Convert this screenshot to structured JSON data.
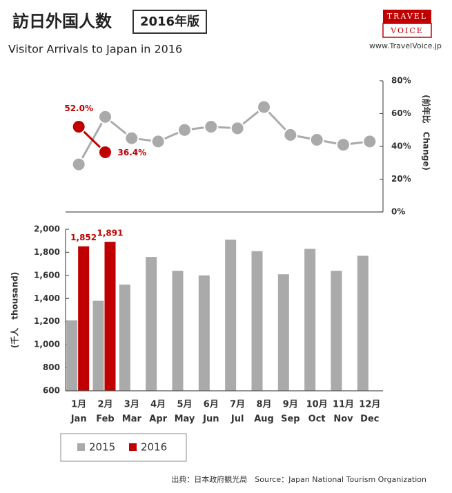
{
  "header": {
    "title": "訪日外国人数",
    "badge": "2016年版",
    "subtitle": "Visitor Arrivals to Japan in 2016",
    "logo_top": "TRAVEL",
    "logo_bottom": "VOICE",
    "url": "www.TravelVoice.jp"
  },
  "chart_data": [
    {
      "type": "line",
      "categories": [
        "1月",
        "2月",
        "3月",
        "4月",
        "5月",
        "6月",
        "7月",
        "8月",
        "9月",
        "10月",
        "11月",
        "12月"
      ],
      "y2label": "(前年比　Change)",
      "y2lim": [
        0,
        80
      ],
      "y2ticks": [
        {
          "value": 0,
          "label": "0%"
        },
        {
          "value": 20,
          "label": "20%"
        },
        {
          "value": 40,
          "label": "40%"
        },
        {
          "value": 60,
          "label": "60%"
        },
        {
          "value": 80,
          "label": "80%"
        }
      ],
      "series": [
        {
          "name": "2015",
          "color": "#aaaaaa",
          "axis": "y2",
          "values": [
            29,
            58,
            45,
            43,
            50,
            52,
            51,
            64,
            47,
            44,
            41,
            43
          ]
        },
        {
          "name": "2016",
          "color": "#c00000",
          "axis": "y2",
          "values": [
            52.0,
            36.4,
            null,
            null,
            null,
            null,
            null,
            null,
            null,
            null,
            null,
            null
          ],
          "value_labels": [
            "52.0%",
            "36.4%",
            null,
            null,
            null,
            null,
            null,
            null,
            null,
            null,
            null,
            null
          ]
        }
      ]
    },
    {
      "type": "bar",
      "categories": [
        "1月",
        "2月",
        "3月",
        "4月",
        "5月",
        "6月",
        "7月",
        "8月",
        "9月",
        "10月",
        "11月",
        "12月"
      ],
      "categories_en": [
        "Jan",
        "Feb",
        "Mar",
        "Apr",
        "May",
        "Jun",
        "Jul",
        "Aug",
        "Sep",
        "Oct",
        "Nov",
        "Dec"
      ],
      "ylabel": "(千人　thousand)",
      "ylim": [
        600,
        2000
      ],
      "yticks": [
        600,
        800,
        {
          "value": 1000,
          "label": "1,000"
        },
        {
          "value": 1200,
          "label": "1,200"
        },
        {
          "value": 1400,
          "label": "1,400"
        },
        {
          "value": 1600,
          "label": "1,600"
        },
        {
          "value": 1800,
          "label": "1,800"
        },
        {
          "value": 2000,
          "label": "2,000"
        }
      ],
      "legend": "bottom-left",
      "series": [
        {
          "name": "2015",
          "color": "#aaaaaa",
          "values": [
            1210,
            1380,
            1520,
            1760,
            1640,
            1600,
            1910,
            1810,
            1610,
            1830,
            1640,
            1770
          ]
        },
        {
          "name": "2016",
          "color": "#c00000",
          "values": [
            1852,
            1891,
            null,
            null,
            null,
            null,
            null,
            null,
            null,
            null,
            null,
            null
          ],
          "value_labels": [
            "1,852",
            "1,891",
            null,
            null,
            null,
            null,
            null,
            null,
            null,
            null,
            null,
            null
          ]
        }
      ]
    }
  ],
  "source": "出典：日本政府観光局　Source：Japan National Tourism Organization"
}
